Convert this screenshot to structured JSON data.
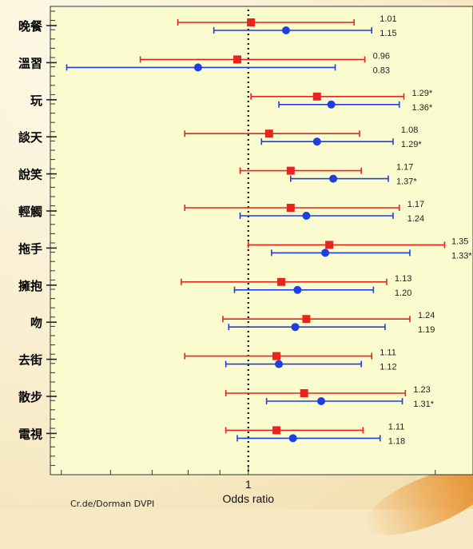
{
  "chart_data": {
    "type": "forest",
    "xlabel": "Odds ratio",
    "x_tick_labels": [
      "1"
    ],
    "x_scale": "log",
    "xlim": [
      0.48,
      2.3
    ],
    "reference_line": 1,
    "series": [
      {
        "color": "#e8241c",
        "marker": "square"
      },
      {
        "color": "#1f3ee0",
        "marker": "circle"
      }
    ],
    "rows": [
      {
        "label": "晚餐",
        "a": {
          "est": 1.01,
          "lo": 0.77,
          "hi": 1.48,
          "text": "1.01"
        },
        "b": {
          "est": 1.15,
          "lo": 0.88,
          "hi": 1.58,
          "text": "1.15"
        }
      },
      {
        "label": "溫習",
        "a": {
          "est": 0.96,
          "lo": 0.67,
          "hi": 1.54,
          "text": "0.96"
        },
        "b": {
          "est": 0.83,
          "lo": 0.51,
          "hi": 1.38,
          "text": "0.83"
        }
      },
      {
        "label": "玩",
        "a": {
          "est": 1.29,
          "lo": 1.01,
          "hi": 1.78,
          "text": "1.29*"
        },
        "b": {
          "est": 1.36,
          "lo": 1.12,
          "hi": 1.75,
          "text": "1.36*"
        }
      },
      {
        "label": "談天",
        "a": {
          "est": 1.08,
          "lo": 0.79,
          "hi": 1.51,
          "text": "1.08"
        },
        "b": {
          "est": 1.29,
          "lo": 1.05,
          "hi": 1.71,
          "text": "1.29*"
        }
      },
      {
        "label": "說笑",
        "a": {
          "est": 1.17,
          "lo": 0.97,
          "hi": 1.52,
          "text": "1.17"
        },
        "b": {
          "est": 1.37,
          "lo": 1.17,
          "hi": 1.68,
          "text": "1.37*"
        }
      },
      {
        "label": "輕觸",
        "a": {
          "est": 1.17,
          "lo": 0.79,
          "hi": 1.75,
          "text": "1.17"
        },
        "b": {
          "est": 1.24,
          "lo": 0.97,
          "hi": 1.71,
          "text": "1.24"
        }
      },
      {
        "label": "拖手",
        "a": {
          "est": 1.35,
          "lo": 1.0,
          "hi": 2.07,
          "text": "1.35"
        },
        "b": {
          "est": 1.33,
          "lo": 1.09,
          "hi": 1.82,
          "text": "1.33*"
        }
      },
      {
        "label": "擁抱",
        "a": {
          "est": 1.13,
          "lo": 0.78,
          "hi": 1.67,
          "text": "1.13"
        },
        "b": {
          "est": 1.2,
          "lo": 0.95,
          "hi": 1.59,
          "text": "1.20"
        }
      },
      {
        "label": "吻",
        "a": {
          "est": 1.24,
          "lo": 0.91,
          "hi": 1.82,
          "text": "1.24"
        },
        "b": {
          "est": 1.19,
          "lo": 0.93,
          "hi": 1.66,
          "text": "1.19"
        }
      },
      {
        "label": "去街",
        "a": {
          "est": 1.11,
          "lo": 0.79,
          "hi": 1.58,
          "text": "1.11"
        },
        "b": {
          "est": 1.12,
          "lo": 0.92,
          "hi": 1.52,
          "text": "1.12"
        }
      },
      {
        "label": "散步",
        "a": {
          "est": 1.23,
          "lo": 0.92,
          "hi": 1.79,
          "text": "1.23"
        },
        "b": {
          "est": 1.31,
          "lo": 1.07,
          "hi": 1.77,
          "text": "1.31*"
        }
      },
      {
        "label": "電視",
        "a": {
          "est": 1.11,
          "lo": 0.92,
          "hi": 1.53,
          "text": "1.11"
        },
        "b": {
          "est": 1.18,
          "lo": 0.96,
          "hi": 1.63,
          "text": "1.18"
        }
      }
    ]
  },
  "footer": {
    "partial_text": "Cr.de/Dorman DVPI"
  }
}
